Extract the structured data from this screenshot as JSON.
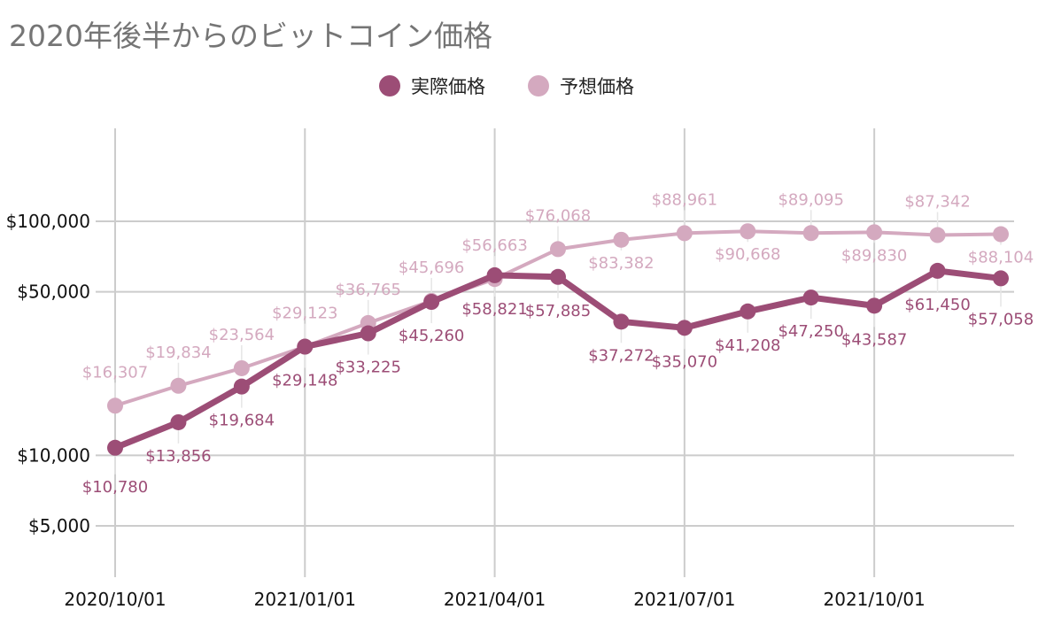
{
  "chart_data": {
    "type": "line",
    "title": "2020年後半からのビットコイン価格",
    "xlabel": "",
    "ylabel": "",
    "y_scale": "log",
    "ylim": [
      3500,
      230000
    ],
    "yticks": [
      5000,
      10000,
      50000,
      100000
    ],
    "ytick_labels": [
      "$5,000",
      "$10,000",
      "$50,000",
      "$100,000"
    ],
    "xtick_labels": [
      "2020/10/01",
      "2021/01/01",
      "2021/04/01",
      "2021/07/01",
      "2021/10/01"
    ],
    "x": [
      "2020/10/01",
      "2020/11/01",
      "2020/12/01",
      "2021/01/01",
      "2021/02/01",
      "2021/03/01",
      "2021/04/01",
      "2021/05/01",
      "2021/06/01",
      "2021/07/01",
      "2021/08/01",
      "2021/09/01",
      "2021/10/01",
      "2021/11/01",
      "2021/12/01"
    ],
    "grid": true,
    "legend_position": "top-center",
    "series": [
      {
        "name": "実際価格",
        "color": "#9c4d76",
        "values": [
          10780,
          13856,
          19684,
          29148,
          33225,
          45260,
          58821,
          57885,
          37272,
          35070,
          41208,
          47250,
          43587,
          61450,
          57058
        ],
        "labels": [
          "$10,780",
          "$13,856",
          "$19,684",
          "$29,148",
          "$33,225",
          "$45,260",
          "$58,821",
          "$57,885",
          "$37,272",
          "$35,070",
          "$41,208",
          "$47,250",
          "$43,587",
          "$61,450",
          "$57,058"
        ]
      },
      {
        "name": "予想価格",
        "color": "#d4a9bf",
        "values": [
          16307,
          19834,
          23564,
          29123,
          36765,
          45696,
          56663,
          76068,
          83382,
          88961,
          90668,
          89095,
          89830,
          87342,
          88104
        ],
        "labels": [
          "$16,307",
          "$19,834",
          "$23,564",
          "$29,123",
          "$36,765",
          "$45,696",
          "$56,663",
          "$76,068",
          "$83,382",
          "$88,961",
          "$90,668",
          "$89,095",
          "$89,830",
          "$87,342",
          "$88,104"
        ]
      }
    ]
  }
}
